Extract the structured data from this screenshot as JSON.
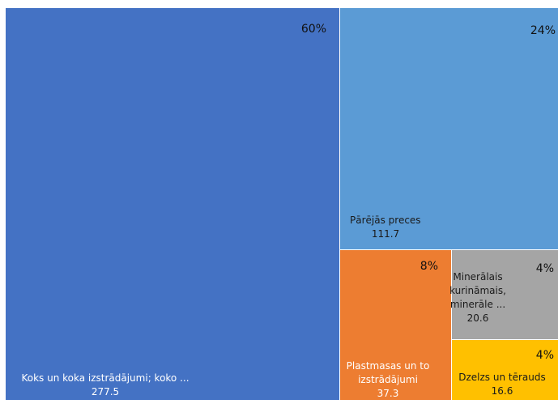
{
  "chart_data": {
    "type": "treemap",
    "title": "",
    "series": [
      {
        "name": "Koks un koka izstrādājumi; koko ...",
        "value": 277.5,
        "percent_label": "60%",
        "color": "#4472C4",
        "text_color": "#ffffff",
        "label_lines": [
          "Koks un koka izstrādājumi; koko ...",
          "277.5"
        ]
      },
      {
        "name": "Pārējās preces",
        "value": 111.7,
        "percent_label": "24%",
        "color": "#5B9BD5",
        "text_color": "#1a1a1a",
        "label_lines": [
          "Pārējās preces",
          "111.7"
        ]
      },
      {
        "name": "Plastmasas un to izstrādājumi",
        "value": 37.3,
        "percent_label": "8%",
        "color": "#ED7D31",
        "text_color": "#ffffff",
        "label_lines": [
          "Plastmasas un to",
          "izstrādājumi",
          "37.3"
        ]
      },
      {
        "name": "Minerālais kurināmais, minerāle ...",
        "value": 20.6,
        "percent_label": "4%",
        "color": "#A5A5A5",
        "text_color": "#1a1a1a",
        "label_lines": [
          "Minerālais",
          "kurināmais,",
          "minerāle ...",
          "20.6"
        ]
      },
      {
        "name": "Dzelzs un tērauds",
        "value": 16.6,
        "percent_label": "4%",
        "color": "#FFC000",
        "text_color": "#1a1a1a",
        "label_lines": [
          "Dzelzs un tērauds",
          "16.6"
        ]
      }
    ]
  }
}
